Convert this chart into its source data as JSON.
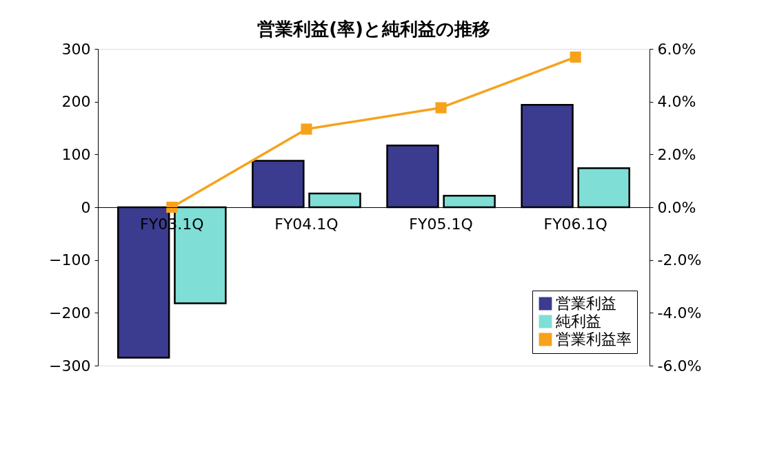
{
  "chart_data": {
    "type": "bar",
    "title": "営業利益(率)と純利益の推移",
    "categories": [
      "FY03.1Q",
      "FY04.1Q",
      "FY05.1Q",
      "FY06.1Q"
    ],
    "series": [
      {
        "name": "営業利益",
        "color": "#3b3b8f",
        "values": [
          -285,
          88,
          117,
          194
        ]
      },
      {
        "name": "純利益",
        "color": "#7fded6",
        "values": [
          -182,
          26,
          22,
          74
        ]
      },
      {
        "name": "営業利益率",
        "type": "line",
        "axis": "y2",
        "color": "#f7a21b",
        "values": [
          0,
          2.96,
          3.77,
          5.69
        ]
      }
    ],
    "ylim": [
      -300,
      300
    ],
    "yticks": [
      -300,
      -200,
      -100,
      0,
      100,
      200,
      300
    ],
    "y2lim": [
      -6,
      6
    ],
    "y2ticks": [
      {
        "value": -6,
        "label": "-6.0%"
      },
      {
        "value": -4,
        "label": "-4.0%"
      },
      {
        "value": -2,
        "label": "-2.0%"
      },
      {
        "value": 0,
        "label": "0.0%"
      },
      {
        "value": 2,
        "label": "2.0%"
      },
      {
        "value": 4,
        "label": "4.0%"
      },
      {
        "value": 6,
        "label": "6.0%"
      }
    ],
    "marker": "square",
    "line_style": "solid",
    "grid": false,
    "legend": "bottom right"
  }
}
